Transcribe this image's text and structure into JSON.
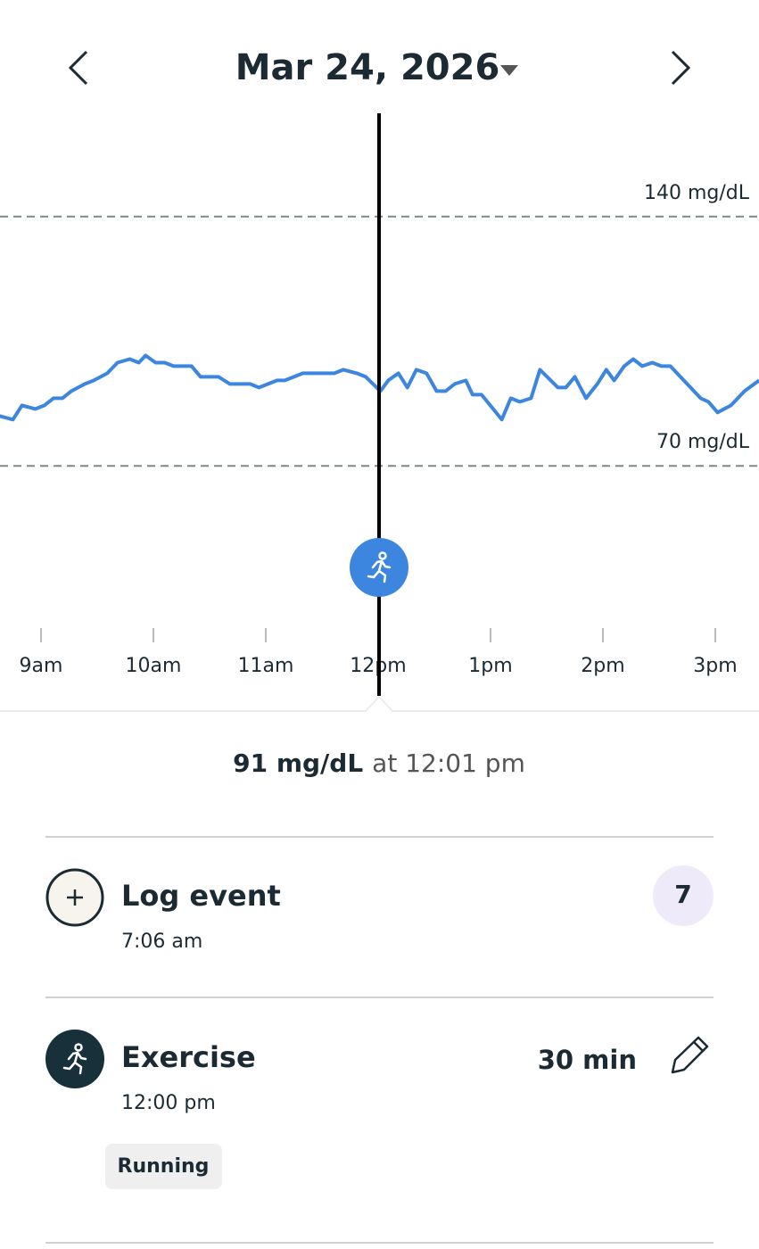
{
  "header": {
    "date": "Mar 24, 2026"
  },
  "chart_data": {
    "type": "line",
    "x": [
      8.63,
      8.75,
      8.83,
      8.95,
      9.03,
      9.11,
      9.19,
      9.27,
      9.39,
      9.47,
      9.59,
      9.68,
      9.79,
      9.87,
      9.93,
      10.02,
      10.1,
      10.18,
      10.34,
      10.42,
      10.58,
      10.68,
      10.86,
      10.94,
      11.1,
      11.17,
      11.33,
      11.61,
      11.69,
      11.81,
      11.89,
      12.02,
      12.09,
      12.18,
      12.26,
      12.34,
      12.43,
      12.52,
      12.6,
      12.68,
      12.78,
      12.84,
      12.92,
      13.1,
      13.18,
      13.26,
      13.36,
      13.44,
      13.6,
      13.67,
      13.75,
      13.85,
      13.95,
      14.03,
      14.1,
      14.19,
      14.27,
      14.35,
      14.44,
      14.52,
      14.6,
      14.75,
      14.87,
      14.94,
      15.02,
      15.14,
      15.26,
      15.39
    ],
    "values": [
      84,
      83,
      87,
      86,
      87,
      89,
      89,
      91,
      93,
      94,
      96,
      99,
      100,
      99,
      101,
      99,
      99,
      98,
      98,
      95,
      95,
      93,
      93,
      92,
      94,
      94,
      96,
      96,
      97,
      96,
      95,
      91,
      94,
      96,
      92,
      97,
      96,
      91,
      91,
      93,
      94,
      90,
      90,
      83,
      89,
      88,
      89,
      97,
      92,
      92,
      95,
      89,
      93,
      97,
      94,
      98,
      100,
      98,
      99,
      98,
      98,
      93,
      89,
      88,
      85,
      87,
      91,
      94
    ],
    "color": "#3d86e0",
    "xlim": [
      8.6,
      15.4
    ],
    "xticks": [
      {
        "value": 9,
        "label": "9am"
      },
      {
        "value": 10,
        "label": "10am"
      },
      {
        "value": 11,
        "label": "11am"
      },
      {
        "value": 12,
        "label": "12pm"
      },
      {
        "value": 13,
        "label": "1pm"
      },
      {
        "value": 14,
        "label": "2pm"
      },
      {
        "value": 15,
        "label": "3pm"
      }
    ],
    "ylim": [
      40,
      170
    ],
    "yticks": [
      {
        "value": 70,
        "label": "70 mg/dL"
      },
      {
        "value": 140,
        "label": "140 mg/dL"
      }
    ],
    "grid": true
  },
  "reading": {
    "value": "91 mg/dL",
    "time": "at 12:01 pm"
  },
  "events": [
    {
      "title": "Log event",
      "time": "7:06 am",
      "badge": 7
    },
    {
      "title": "Exercise",
      "time": "12:00 pm",
      "duration": "30 min",
      "tag": "Running"
    }
  ]
}
